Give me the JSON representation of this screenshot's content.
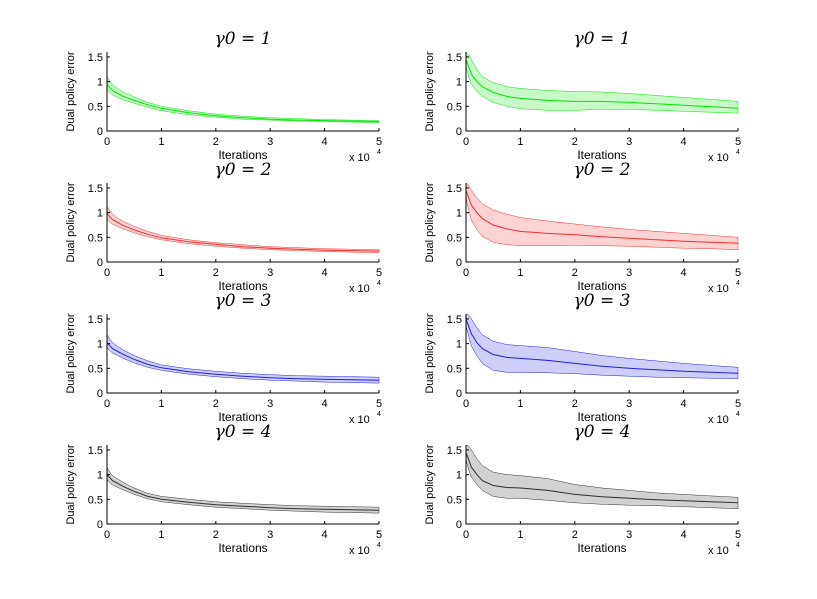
{
  "chart_data": [
    {
      "type": "area",
      "title": "γ0 = 1",
      "xlabel": "Iterations",
      "ylabel": "Dual policy error",
      "x_multiplier": "x 10",
      "x_multiplier_exp": "4",
      "xlim": [
        0,
        5
      ],
      "ylim": [
        0,
        1.6
      ],
      "x_ticks": [
        "0",
        "1",
        "2",
        "3",
        "4",
        "5"
      ],
      "y_ticks": [
        "0",
        "0.5",
        "1",
        "1.5"
      ],
      "color": "#00e600",
      "x": [
        0,
        0.05,
        0.1,
        0.2,
        0.3,
        0.5,
        0.75,
        1,
        1.5,
        2,
        2.5,
        3,
        3.5,
        4,
        4.5,
        5
      ],
      "mean": [
        0.95,
        0.88,
        0.82,
        0.76,
        0.7,
        0.62,
        0.53,
        0.46,
        0.37,
        0.31,
        0.27,
        0.24,
        0.22,
        0.21,
        0.2,
        0.19
      ],
      "lower": [
        0.85,
        0.78,
        0.73,
        0.68,
        0.63,
        0.56,
        0.48,
        0.41,
        0.33,
        0.28,
        0.24,
        0.22,
        0.2,
        0.19,
        0.18,
        0.17
      ],
      "upper": [
        1.1,
        1.02,
        0.94,
        0.86,
        0.79,
        0.69,
        0.58,
        0.5,
        0.41,
        0.34,
        0.3,
        0.27,
        0.25,
        0.23,
        0.22,
        0.21
      ]
    },
    {
      "type": "area",
      "title": "γ0 = 1",
      "xlabel": "Iterations",
      "ylabel": "Dual policy error",
      "x_multiplier": "x 10",
      "x_multiplier_exp": "4",
      "xlim": [
        0,
        5
      ],
      "ylim": [
        0,
        1.6
      ],
      "x_ticks": [
        "0",
        "1",
        "2",
        "3",
        "4",
        "5"
      ],
      "y_ticks": [
        "0",
        "0.5",
        "1",
        "1.5"
      ],
      "color": "#00e600",
      "x": [
        0,
        0.05,
        0.1,
        0.2,
        0.3,
        0.5,
        0.75,
        1,
        1.5,
        2,
        2.5,
        3,
        3.5,
        4,
        4.5,
        5
      ],
      "mean": [
        1.45,
        1.3,
        1.15,
        1.0,
        0.9,
        0.78,
        0.7,
        0.66,
        0.62,
        0.6,
        0.6,
        0.58,
        0.55,
        0.52,
        0.49,
        0.46
      ],
      "lower": [
        1.3,
        1.1,
        0.95,
        0.8,
        0.7,
        0.58,
        0.5,
        0.45,
        0.42,
        0.42,
        0.44,
        0.44,
        0.42,
        0.4,
        0.38,
        0.36
      ],
      "upper": [
        1.6,
        1.55,
        1.45,
        1.25,
        1.1,
        0.98,
        0.9,
        0.86,
        0.82,
        0.8,
        0.79,
        0.76,
        0.72,
        0.68,
        0.64,
        0.6
      ]
    },
    {
      "type": "area",
      "title": "γ0 = 2",
      "xlabel": "Iterations",
      "ylabel": "Dual policy error",
      "x_multiplier": "x 10",
      "x_multiplier_exp": "4",
      "xlim": [
        0,
        5
      ],
      "ylim": [
        0,
        1.6
      ],
      "x_ticks": [
        "0",
        "1",
        "2",
        "3",
        "4",
        "5"
      ],
      "y_ticks": [
        "0",
        "0.5",
        "1",
        "1.5"
      ],
      "color": "#f03030",
      "x": [
        0,
        0.05,
        0.1,
        0.2,
        0.3,
        0.5,
        0.75,
        1,
        1.5,
        2,
        2.5,
        3,
        3.5,
        4,
        4.5,
        5
      ],
      "mean": [
        0.98,
        0.92,
        0.86,
        0.8,
        0.74,
        0.65,
        0.56,
        0.49,
        0.41,
        0.36,
        0.31,
        0.28,
        0.26,
        0.24,
        0.23,
        0.22
      ],
      "lower": [
        0.88,
        0.82,
        0.77,
        0.72,
        0.67,
        0.59,
        0.51,
        0.45,
        0.37,
        0.32,
        0.28,
        0.25,
        0.23,
        0.21,
        0.2,
        0.19
      ],
      "upper": [
        1.12,
        1.05,
        0.97,
        0.89,
        0.82,
        0.72,
        0.62,
        0.54,
        0.45,
        0.39,
        0.35,
        0.31,
        0.29,
        0.27,
        0.26,
        0.25
      ]
    },
    {
      "type": "area",
      "title": "γ0 = 2",
      "xlabel": "Iterations",
      "ylabel": "Dual policy error",
      "x_multiplier": "x 10",
      "x_multiplier_exp": "4",
      "xlim": [
        0,
        5
      ],
      "ylim": [
        0,
        1.6
      ],
      "x_ticks": [
        "0",
        "1",
        "2",
        "3",
        "4",
        "5"
      ],
      "y_ticks": [
        "0",
        "0.5",
        "1",
        "1.5"
      ],
      "color": "#f03030",
      "x": [
        0,
        0.05,
        0.1,
        0.2,
        0.3,
        0.5,
        0.75,
        1,
        1.5,
        2,
        2.5,
        3,
        3.5,
        4,
        4.5,
        5
      ],
      "mean": [
        1.45,
        1.3,
        1.15,
        1.0,
        0.88,
        0.75,
        0.67,
        0.62,
        0.58,
        0.55,
        0.51,
        0.48,
        0.45,
        0.42,
        0.4,
        0.38
      ],
      "lower": [
        1.3,
        1.05,
        0.85,
        0.65,
        0.52,
        0.4,
        0.35,
        0.33,
        0.33,
        0.34,
        0.33,
        0.32,
        0.3,
        0.28,
        0.27,
        0.25
      ],
      "upper": [
        1.6,
        1.55,
        1.45,
        1.3,
        1.18,
        1.05,
        0.97,
        0.9,
        0.83,
        0.77,
        0.71,
        0.66,
        0.62,
        0.58,
        0.54,
        0.5
      ]
    },
    {
      "type": "area",
      "title": "γ0 = 3",
      "xlabel": "Iterations",
      "ylabel": "Dual policy error",
      "x_multiplier": "x 10",
      "x_multiplier_exp": "4",
      "xlim": [
        0,
        5
      ],
      "ylim": [
        0,
        1.6
      ],
      "x_ticks": [
        "0",
        "1",
        "2",
        "3",
        "4",
        "5"
      ],
      "y_ticks": [
        "0",
        "0.5",
        "1",
        "1.5"
      ],
      "color": "#2020e0",
      "x": [
        0,
        0.05,
        0.1,
        0.2,
        0.3,
        0.5,
        0.75,
        1,
        1.5,
        2,
        2.5,
        3,
        3.5,
        4,
        4.5,
        5
      ],
      "mean": [
        1.02,
        0.96,
        0.9,
        0.84,
        0.78,
        0.68,
        0.58,
        0.51,
        0.43,
        0.38,
        0.34,
        0.31,
        0.29,
        0.28,
        0.27,
        0.26
      ],
      "lower": [
        0.92,
        0.86,
        0.81,
        0.76,
        0.7,
        0.61,
        0.52,
        0.46,
        0.38,
        0.33,
        0.29,
        0.26,
        0.24,
        0.22,
        0.21,
        0.2
      ],
      "upper": [
        1.18,
        1.1,
        1.02,
        0.94,
        0.87,
        0.76,
        0.65,
        0.57,
        0.49,
        0.44,
        0.4,
        0.37,
        0.35,
        0.34,
        0.33,
        0.32
      ]
    },
    {
      "type": "area",
      "title": "γ0 = 3",
      "xlabel": "Iterations",
      "ylabel": "Dual policy error",
      "x_multiplier": "x 10",
      "x_multiplier_exp": "4",
      "xlim": [
        0,
        5
      ],
      "ylim": [
        0,
        1.6
      ],
      "x_ticks": [
        "0",
        "1",
        "2",
        "3",
        "4",
        "5"
      ],
      "y_ticks": [
        "0",
        "0.5",
        "1",
        "1.5"
      ],
      "color": "#2020e0",
      "x": [
        0,
        0.05,
        0.1,
        0.2,
        0.3,
        0.5,
        0.75,
        1,
        1.5,
        2,
        2.5,
        3,
        3.5,
        4,
        4.5,
        5
      ],
      "mean": [
        1.5,
        1.35,
        1.2,
        1.02,
        0.9,
        0.78,
        0.72,
        0.7,
        0.66,
        0.6,
        0.54,
        0.5,
        0.47,
        0.44,
        0.42,
        0.4
      ],
      "lower": [
        1.35,
        1.15,
        0.95,
        0.75,
        0.6,
        0.46,
        0.42,
        0.42,
        0.41,
        0.39,
        0.36,
        0.34,
        0.32,
        0.31,
        0.3,
        0.29
      ],
      "upper": [
        1.6,
        1.58,
        1.5,
        1.32,
        1.18,
        1.05,
        0.98,
        0.96,
        0.92,
        0.84,
        0.76,
        0.7,
        0.65,
        0.6,
        0.56,
        0.52
      ]
    },
    {
      "type": "area",
      "title": "γ0 = 4",
      "xlabel": "Iterations",
      "ylabel": "Dual policy error",
      "x_multiplier": "x 10",
      "x_multiplier_exp": "4",
      "xlim": [
        0,
        5
      ],
      "ylim": [
        0,
        1.6
      ],
      "x_ticks": [
        "0",
        "1",
        "2",
        "3",
        "4",
        "5"
      ],
      "y_ticks": [
        "0",
        "0.5",
        "1",
        "1.5"
      ],
      "color": "#303030",
      "x": [
        0,
        0.05,
        0.1,
        0.2,
        0.3,
        0.5,
        0.75,
        1,
        1.5,
        2,
        2.5,
        3,
        3.5,
        4,
        4.5,
        5
      ],
      "mean": [
        1.0,
        0.94,
        0.88,
        0.82,
        0.76,
        0.66,
        0.56,
        0.5,
        0.44,
        0.39,
        0.36,
        0.33,
        0.31,
        0.3,
        0.29,
        0.28
      ],
      "lower": [
        0.9,
        0.84,
        0.79,
        0.74,
        0.69,
        0.6,
        0.51,
        0.45,
        0.39,
        0.34,
        0.31,
        0.28,
        0.26,
        0.24,
        0.23,
        0.22
      ],
      "upper": [
        1.14,
        1.06,
        0.98,
        0.91,
        0.84,
        0.73,
        0.62,
        0.56,
        0.5,
        0.45,
        0.42,
        0.39,
        0.37,
        0.36,
        0.35,
        0.34
      ]
    },
    {
      "type": "area",
      "title": "γ0 = 4",
      "xlabel": "Iterations",
      "ylabel": "Dual policy error",
      "x_multiplier": "x 10",
      "x_multiplier_exp": "4",
      "xlim": [
        0,
        5
      ],
      "ylim": [
        0,
        1.6
      ],
      "x_ticks": [
        "0",
        "1",
        "2",
        "3",
        "4",
        "5"
      ],
      "y_ticks": [
        "0",
        "0.5",
        "1",
        "1.5"
      ],
      "color": "#303030",
      "x": [
        0,
        0.05,
        0.1,
        0.2,
        0.3,
        0.5,
        0.75,
        1,
        1.5,
        2,
        2.5,
        3,
        3.5,
        4,
        4.5,
        5
      ],
      "mean": [
        1.45,
        1.3,
        1.15,
        1.0,
        0.88,
        0.78,
        0.74,
        0.73,
        0.68,
        0.6,
        0.55,
        0.52,
        0.49,
        0.47,
        0.45,
        0.43
      ],
      "lower": [
        1.3,
        1.1,
        0.95,
        0.8,
        0.68,
        0.56,
        0.52,
        0.52,
        0.48,
        0.43,
        0.4,
        0.38,
        0.37,
        0.35,
        0.33,
        0.31
      ],
      "upper": [
        1.6,
        1.58,
        1.5,
        1.32,
        1.18,
        1.05,
        1.0,
        0.98,
        0.92,
        0.8,
        0.73,
        0.68,
        0.63,
        0.6,
        0.57,
        0.54
      ]
    }
  ]
}
